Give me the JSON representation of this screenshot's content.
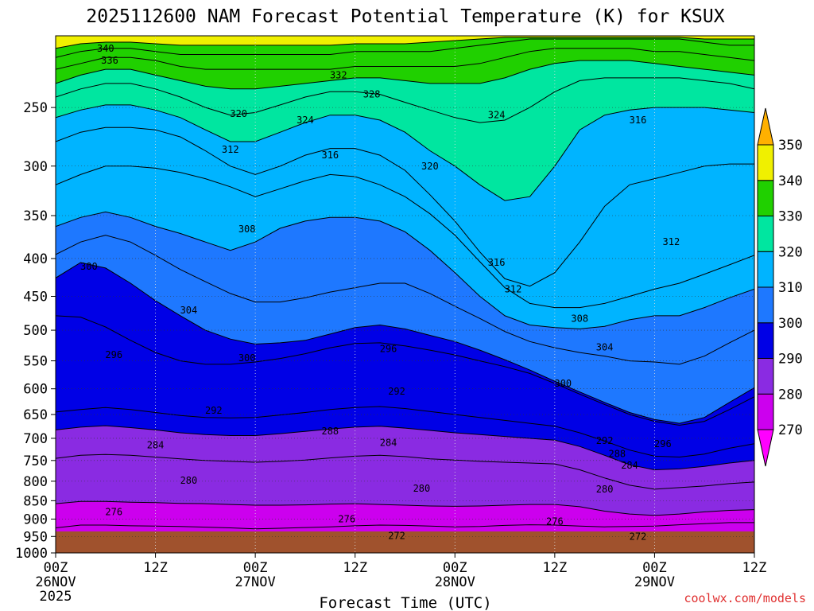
{
  "chart_data": {
    "type": "contour",
    "title": "2025112600 NAM Forecast Potential Temperature (K) for KSUX",
    "xlabel": "Forecast Time (UTC)",
    "ylabel": "",
    "credit": "coolwx.com/models",
    "y_axis": {
      "unit": "hPa",
      "range": [
        1000,
        200
      ],
      "ticks": [
        250,
        300,
        350,
        400,
        450,
        500,
        550,
        600,
        650,
        700,
        750,
        800,
        850,
        900,
        950,
        1000
      ]
    },
    "x_axis": {
      "unit": "forecast hour",
      "range": [
        0,
        84
      ],
      "ticks": [
        {
          "hour": 0,
          "label": "00Z",
          "date": "26NOV",
          "year": "2025"
        },
        {
          "hour": 12,
          "label": "12Z"
        },
        {
          "hour": 24,
          "label": "00Z",
          "date": "27NOV"
        },
        {
          "hour": 36,
          "label": "12Z"
        },
        {
          "hour": 48,
          "label": "00Z",
          "date": "28NOV"
        },
        {
          "hour": 60,
          "label": "12Z"
        },
        {
          "hour": 72,
          "label": "00Z",
          "date": "29NOV"
        },
        {
          "hour": 84,
          "label": "12Z"
        }
      ]
    },
    "colorbar": {
      "bands": [
        {
          "low": 260,
          "high": 270,
          "color": "#ff00ff"
        },
        {
          "low": 270,
          "high": 280,
          "color": "#cc00ee"
        },
        {
          "low": 280,
          "high": 290,
          "color": "#8a2be2"
        },
        {
          "low": 290,
          "high": 300,
          "color": "#0000e6"
        },
        {
          "low": 300,
          "high": 310,
          "color": "#1e78ff"
        },
        {
          "low": 310,
          "high": 320,
          "color": "#00b4ff"
        },
        {
          "low": 320,
          "high": 330,
          "color": "#00e6a0"
        },
        {
          "low": 330,
          "high": 340,
          "color": "#20d000"
        },
        {
          "low": 340,
          "high": 350,
          "color": "#f0f000"
        },
        {
          "low": 350,
          "high": 360,
          "color": "#ffb000"
        }
      ],
      "labels": [
        270,
        280,
        290,
        300,
        310,
        320,
        330,
        340,
        350
      ]
    },
    "ground_color": "#a0522d",
    "isentrope_levels_hpa": {
      "hours": [
        0,
        3,
        6,
        9,
        12,
        15,
        18,
        21,
        24,
        27,
        30,
        33,
        36,
        39,
        42,
        45,
        48,
        51,
        54,
        57,
        60,
        63,
        66,
        69,
        72,
        75,
        78,
        81,
        84
      ],
      "lines": [
        {
          "theta": 272,
          "p": [
            975,
            962,
            960,
            962,
            965,
            966,
            967,
            968,
            969,
            968,
            966,
            964,
            962,
            961,
            960,
            962,
            964,
            964,
            962,
            961,
            962,
            963,
            962,
            962,
            962,
            960,
            958,
            956,
            956
          ]
        },
        {
          "theta": 276,
          "p": [
            925,
            917,
            917,
            919,
            920,
            921,
            923,
            925,
            928,
            926,
            924,
            922,
            919,
            917,
            918,
            920,
            922,
            921,
            918,
            916,
            917,
            920,
            922,
            921,
            920,
            916,
            913,
            910,
            910
          ]
        },
        {
          "theta": 280,
          "p": [
            858,
            852,
            852,
            854,
            855,
            857,
            858,
            860,
            862,
            862,
            861,
            859,
            858,
            860,
            862,
            864,
            865,
            864,
            862,
            860,
            860,
            866,
            878,
            886,
            890,
            886,
            880,
            876,
            874
          ]
        },
        {
          "theta": 284,
          "p": [
            745,
            738,
            736,
            738,
            742,
            746,
            750,
            752,
            754,
            752,
            749,
            744,
            740,
            738,
            741,
            746,
            749,
            752,
            754,
            756,
            758,
            772,
            792,
            810,
            820,
            816,
            812,
            806,
            802
          ]
        },
        {
          "theta": 288,
          "p": [
            682,
            676,
            673,
            677,
            682,
            688,
            692,
            694,
            694,
            690,
            685,
            680,
            676,
            674,
            678,
            683,
            688,
            692,
            696,
            700,
            704,
            718,
            738,
            760,
            772,
            770,
            764,
            756,
            750
          ]
        },
        {
          "theta": 292,
          "p": [
            645,
            640,
            636,
            640,
            646,
            652,
            656,
            657,
            656,
            651,
            646,
            640,
            636,
            634,
            638,
            644,
            650,
            656,
            662,
            668,
            674,
            688,
            706,
            726,
            740,
            742,
            735,
            722,
            712
          ]
        },
        {
          "theta": 296,
          "p": [
            478,
            480,
            495,
            516,
            536,
            550,
            556,
            556,
            552,
            546,
            538,
            528,
            521,
            520,
            525,
            532,
            540,
            550,
            560,
            572,
            590,
            610,
            630,
            650,
            664,
            672,
            664,
            640,
            615
          ]
        },
        {
          "theta": 300,
          "p": [
            425,
            405,
            412,
            432,
            456,
            478,
            500,
            514,
            522,
            520,
            516,
            506,
            496,
            492,
            498,
            508,
            518,
            532,
            548,
            566,
            586,
            606,
            626,
            646,
            660,
            668,
            656,
            626,
            598
          ]
        },
        {
          "theta": 304,
          "p": [
            395,
            380,
            372,
            380,
            396,
            414,
            430,
            446,
            458,
            458,
            452,
            444,
            438,
            432,
            432,
            446,
            464,
            482,
            502,
            518,
            528,
            536,
            542,
            550,
            552,
            556,
            542,
            520,
            500
          ]
        },
        {
          "theta": 308,
          "p": [
            362,
            352,
            346,
            352,
            362,
            370,
            380,
            390,
            380,
            364,
            356,
            352,
            352,
            356,
            368,
            390,
            418,
            450,
            478,
            492,
            496,
            498,
            494,
            484,
            478,
            478,
            466,
            452,
            440
          ]
        },
        {
          "theta": 312,
          "p": [
            318,
            308,
            300,
            300,
            302,
            306,
            312,
            320,
            330,
            322,
            314,
            308,
            310,
            318,
            330,
            348,
            372,
            404,
            438,
            460,
            466,
            466,
            460,
            450,
            440,
            432,
            420,
            408,
            396
          ]
        },
        {
          "theta": 316,
          "p": [
            278,
            270,
            266,
            266,
            268,
            274,
            286,
            300,
            308,
            300,
            290,
            284,
            284,
            290,
            304,
            328,
            356,
            392,
            426,
            436,
            418,
            380,
            340,
            318,
            312,
            306,
            300,
            298,
            298
          ]
        },
        {
          "theta": 320,
          "p": [
            258,
            252,
            248,
            248,
            252,
            258,
            268,
            278,
            278,
            270,
            262,
            256,
            256,
            260,
            270,
            286,
            300,
            318,
            334,
            330,
            300,
            268,
            256,
            252,
            250,
            250,
            250,
            252,
            254
          ]
        },
        {
          "theta": 324,
          "p": [
            242,
            236,
            232,
            232,
            236,
            242,
            250,
            256,
            254,
            248,
            242,
            238,
            238,
            240,
            246,
            252,
            258,
            262,
            260,
            250,
            238,
            230,
            228,
            228,
            228,
            228,
            230,
            232,
            236
          ]
        },
        {
          "theta": 328,
          "p": [
            232,
            226,
            222,
            222,
            226,
            230,
            234,
            236,
            236,
            234,
            232,
            230,
            228,
            228,
            230,
            232,
            232,
            232,
            228,
            222,
            218,
            216,
            216,
            216,
            218,
            220,
            222,
            224,
            226
          ]
        },
        {
          "theta": 332,
          "p": [
            222,
            218,
            214,
            214,
            216,
            220,
            222,
            222,
            222,
            222,
            222,
            222,
            220,
            220,
            220,
            220,
            220,
            218,
            214,
            210,
            208,
            208,
            208,
            208,
            210,
            210,
            212,
            214,
            216
          ]
        },
        {
          "theta": 336,
          "p": [
            214,
            210,
            208,
            208,
            210,
            212,
            212,
            212,
            212,
            212,
            212,
            212,
            210,
            210,
            210,
            210,
            208,
            206,
            204,
            202,
            202,
            202,
            202,
            202,
            202,
            202,
            204,
            206,
            206
          ]
        },
        {
          "theta": 340,
          "p": [
            208,
            205,
            204,
            204,
            205,
            206,
            206,
            206,
            206,
            206,
            206,
            206,
            205,
            205,
            205,
            204,
            203,
            202,
            201,
            201,
            201,
            201,
            201,
            201,
            201,
            201,
            202,
            202,
            202
          ]
        }
      ]
    },
    "contour_labels": [
      {
        "text": "340",
        "hour": 6,
        "p": 208
      },
      {
        "text": "336",
        "hour": 6.5,
        "p": 216
      },
      {
        "text": "332",
        "hour": 34,
        "p": 226
      },
      {
        "text": "328",
        "hour": 38,
        "p": 240
      },
      {
        "text": "324",
        "hour": 30,
        "p": 260
      },
      {
        "text": "324",
        "hour": 53,
        "p": 256
      },
      {
        "text": "320",
        "hour": 22,
        "p": 255
      },
      {
        "text": "320",
        "hour": 45,
        "p": 300
      },
      {
        "text": "316",
        "hour": 33,
        "p": 290
      },
      {
        "text": "316",
        "hour": 70,
        "p": 260
      },
      {
        "text": "316",
        "hour": 53,
        "p": 405
      },
      {
        "text": "312",
        "hour": 21,
        "p": 285
      },
      {
        "text": "312",
        "hour": 74,
        "p": 380
      },
      {
        "text": "312",
        "hour": 55,
        "p": 440
      },
      {
        "text": "308",
        "hour": 23,
        "p": 365
      },
      {
        "text": "308",
        "hour": 63,
        "p": 482
      },
      {
        "text": "304",
        "hour": 16,
        "p": 470
      },
      {
        "text": "304",
        "hour": 66,
        "p": 527
      },
      {
        "text": "300",
        "hour": 4,
        "p": 410
      },
      {
        "text": "300",
        "hour": 23,
        "p": 545
      },
      {
        "text": "300",
        "hour": 61,
        "p": 590
      },
      {
        "text": "296",
        "hour": 7,
        "p": 540
      },
      {
        "text": "296",
        "hour": 40,
        "p": 530
      },
      {
        "text": "296",
        "hour": 73,
        "p": 712
      },
      {
        "text": "292",
        "hour": 19,
        "p": 642
      },
      {
        "text": "292",
        "hour": 41,
        "p": 605
      },
      {
        "text": "292",
        "hour": 66,
        "p": 705
      },
      {
        "text": "288",
        "hour": 33,
        "p": 685
      },
      {
        "text": "288",
        "hour": 67.5,
        "p": 735
      },
      {
        "text": "284",
        "hour": 12,
        "p": 715
      },
      {
        "text": "284",
        "hour": 40,
        "p": 710
      },
      {
        "text": "284",
        "hour": 69,
        "p": 762
      },
      {
        "text": "280",
        "hour": 16,
        "p": 798
      },
      {
        "text": "280",
        "hour": 44,
        "p": 818
      },
      {
        "text": "280",
        "hour": 66,
        "p": 820
      },
      {
        "text": "276",
        "hour": 7,
        "p": 880
      },
      {
        "text": "276",
        "hour": 35,
        "p": 900
      },
      {
        "text": "276",
        "hour": 60,
        "p": 907
      },
      {
        "text": "272",
        "hour": 41,
        "p": 948
      },
      {
        "text": "272",
        "hour": 70,
        "p": 950
      }
    ]
  }
}
